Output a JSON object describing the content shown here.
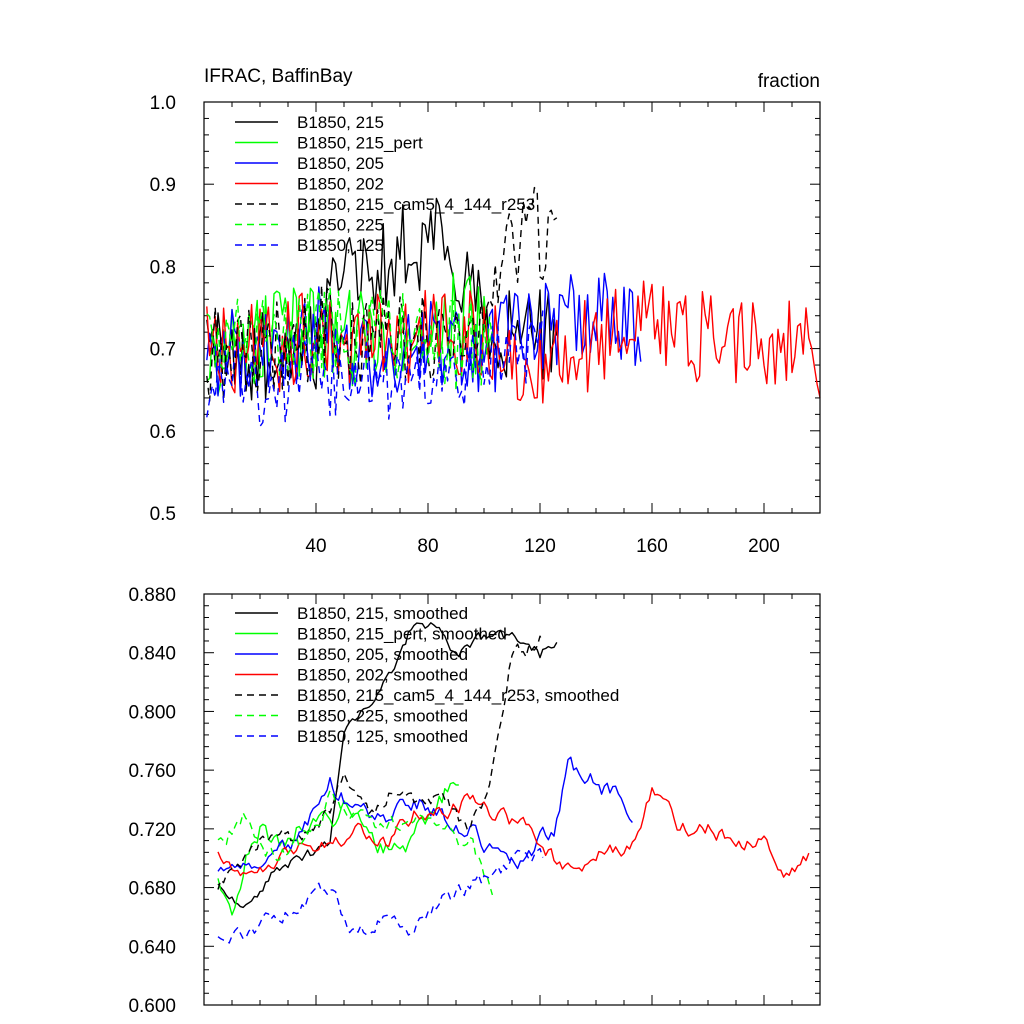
{
  "chart_data": [
    {
      "type": "line",
      "title": "IFRAC, BaffinBay",
      "units": "fraction",
      "xlim": [
        0,
        220
      ],
      "ylim": [
        0.5,
        1.0
      ],
      "xticks": [
        40,
        80,
        120,
        160,
        200
      ],
      "xticklabels": [
        "40",
        "80",
        "120",
        "160",
        "200"
      ],
      "yticks": [
        0.5,
        0.6,
        0.7,
        0.8,
        0.9,
        1.0
      ],
      "yticklabels": [
        "0.5",
        "0.6",
        "0.7",
        "0.8",
        "0.9",
        "1.0"
      ],
      "legend_placement": "top-left",
      "series": [
        {
          "name": "B1850, 215",
          "color": "#000000",
          "dash": "solid",
          "x_start": 1,
          "x_end": 126,
          "base": 0.71,
          "amp": 0.06,
          "anchors": [
            [
              1,
              0.7
            ],
            [
              20,
              0.69
            ],
            [
              40,
              0.71
            ],
            [
              50,
              0.78
            ],
            [
              60,
              0.8
            ],
            [
              70,
              0.82
            ],
            [
              80,
              0.83
            ],
            [
              85,
              0.85
            ],
            [
              92,
              0.8
            ],
            [
              100,
              0.74
            ],
            [
              110,
              0.72
            ],
            [
              126,
              0.71
            ]
          ]
        },
        {
          "name": "B1850, 215_pert",
          "color": "#00ff00",
          "dash": "solid",
          "x_start": 1,
          "x_end": 103,
          "base": 0.71,
          "amp": 0.06,
          "anchors": [
            [
              1,
              0.7
            ],
            [
              20,
              0.71
            ],
            [
              40,
              0.72
            ],
            [
              60,
              0.71
            ],
            [
              80,
              0.72
            ],
            [
              90,
              0.74
            ],
            [
              103,
              0.71
            ]
          ]
        },
        {
          "name": "B1850, 205",
          "color": "#0000ff",
          "dash": "solid",
          "x_start": 1,
          "x_end": 156,
          "base": 0.71,
          "amp": 0.06,
          "anchors": [
            [
              1,
              0.68
            ],
            [
              20,
              0.7
            ],
            [
              40,
              0.72
            ],
            [
              60,
              0.7
            ],
            [
              80,
              0.71
            ],
            [
              100,
              0.7
            ],
            [
              120,
              0.73
            ],
            [
              140,
              0.74
            ],
            [
              156,
              0.72
            ]
          ]
        },
        {
          "name": "B1850, 202",
          "color": "#ff0000",
          "dash": "solid",
          "x_start": 1,
          "x_end": 220,
          "base": 0.71,
          "amp": 0.06,
          "anchors": [
            [
              1,
              0.7
            ],
            [
              20,
              0.7
            ],
            [
              40,
              0.71
            ],
            [
              60,
              0.71
            ],
            [
              80,
              0.72
            ],
            [
              100,
              0.71
            ],
            [
              120,
              0.69
            ],
            [
              140,
              0.71
            ],
            [
              160,
              0.74
            ],
            [
              180,
              0.71
            ],
            [
              200,
              0.71
            ],
            [
              220,
              0.7
            ]
          ]
        },
        {
          "name": "B1850, 215_cam5_4_144_r253",
          "color": "#000000",
          "dash": "7,5",
          "x_start": 1,
          "x_end": 126,
          "base": 0.71,
          "amp": 0.06,
          "anchors": [
            [
              1,
              0.69
            ],
            [
              20,
              0.7
            ],
            [
              40,
              0.72
            ],
            [
              60,
              0.71
            ],
            [
              80,
              0.72
            ],
            [
              100,
              0.74
            ],
            [
              110,
              0.82
            ],
            [
              118,
              0.84
            ],
            [
              126,
              0.85
            ]
          ]
        },
        {
          "name": "B1850, 225",
          "color": "#00ff00",
          "dash": "7,5",
          "x_start": 1,
          "x_end": 103,
          "base": 0.71,
          "amp": 0.06,
          "anchors": [
            [
              1,
              0.72
            ],
            [
              20,
              0.71
            ],
            [
              40,
              0.72
            ],
            [
              60,
              0.71
            ],
            [
              80,
              0.72
            ],
            [
              103,
              0.69
            ]
          ]
        },
        {
          "name": "B1850, 125",
          "color": "#0000ff",
          "dash": "7,5",
          "x_start": 1,
          "x_end": 121,
          "base": 0.67,
          "amp": 0.05,
          "anchors": [
            [
              1,
              0.66
            ],
            [
              20,
              0.65
            ],
            [
              40,
              0.67
            ],
            [
              60,
              0.66
            ],
            [
              80,
              0.67
            ],
            [
              100,
              0.68
            ],
            [
              121,
              0.7
            ]
          ]
        }
      ]
    },
    {
      "type": "line",
      "title": "",
      "units": "",
      "xlim": [
        0,
        220
      ],
      "ylim": [
        0.6,
        0.88
      ],
      "xticks": [
        40,
        80,
        120,
        160,
        200
      ],
      "xticklabels": [],
      "yticks": [
        0.6,
        0.64,
        0.68,
        0.72,
        0.76,
        0.8,
        0.84,
        0.88
      ],
      "yticklabels": [
        "0.600",
        "0.640",
        "0.680",
        "0.720",
        "0.760",
        "0.800",
        "0.840",
        "0.880"
      ],
      "legend_placement": "top-left",
      "series": [
        {
          "name": "B1850, 215, smoothed",
          "color": "#000000",
          "dash": "solid",
          "x_start": 5,
          "x_end": 126,
          "amp": 0.008,
          "anchors": [
            [
              5,
              0.68
            ],
            [
              15,
              0.67
            ],
            [
              25,
              0.69
            ],
            [
              35,
              0.7
            ],
            [
              45,
              0.71
            ],
            [
              50,
              0.78
            ],
            [
              55,
              0.8
            ],
            [
              60,
              0.81
            ],
            [
              65,
              0.82
            ],
            [
              70,
              0.84
            ],
            [
              75,
              0.86
            ],
            [
              80,
              0.86
            ],
            [
              85,
              0.85
            ],
            [
              90,
              0.84
            ],
            [
              100,
              0.85
            ],
            [
              110,
              0.85
            ],
            [
              115,
              0.85
            ],
            [
              120,
              0.84
            ],
            [
              126,
              0.85
            ]
          ]
        },
        {
          "name": "B1850, 215_pert, smoothed",
          "color": "#00ff00",
          "dash": "solid",
          "x_start": 5,
          "x_end": 91,
          "amp": 0.015,
          "anchors": [
            [
              5,
              0.69
            ],
            [
              10,
              0.67
            ],
            [
              15,
              0.7
            ],
            [
              20,
              0.72
            ],
            [
              30,
              0.71
            ],
            [
              40,
              0.73
            ],
            [
              50,
              0.73
            ],
            [
              60,
              0.71
            ],
            [
              70,
              0.7
            ],
            [
              80,
              0.73
            ],
            [
              85,
              0.74
            ],
            [
              91,
              0.76
            ]
          ]
        },
        {
          "name": "B1850, 205, smoothed",
          "color": "#0000ff",
          "dash": "solid",
          "x_start": 5,
          "x_end": 153,
          "amp": 0.012,
          "anchors": [
            [
              5,
              0.69
            ],
            [
              15,
              0.7
            ],
            [
              25,
              0.7
            ],
            [
              35,
              0.72
            ],
            [
              40,
              0.73
            ],
            [
              45,
              0.75
            ],
            [
              55,
              0.73
            ],
            [
              65,
              0.73
            ],
            [
              75,
              0.74
            ],
            [
              85,
              0.73
            ],
            [
              95,
              0.72
            ],
            [
              105,
              0.7
            ],
            [
              115,
              0.7
            ],
            [
              120,
              0.71
            ],
            [
              125,
              0.72
            ],
            [
              130,
              0.76
            ],
            [
              135,
              0.76
            ],
            [
              140,
              0.75
            ],
            [
              150,
              0.74
            ],
            [
              153,
              0.73
            ]
          ]
        },
        {
          "name": "B1850, 202, smoothed",
          "color": "#ff0000",
          "dash": "solid",
          "x_start": 5,
          "x_end": 216,
          "amp": 0.01,
          "anchors": [
            [
              5,
              0.7
            ],
            [
              15,
              0.69
            ],
            [
              25,
              0.7
            ],
            [
              35,
              0.71
            ],
            [
              45,
              0.71
            ],
            [
              55,
              0.72
            ],
            [
              65,
              0.71
            ],
            [
              75,
              0.73
            ],
            [
              85,
              0.73
            ],
            [
              95,
              0.74
            ],
            [
              105,
              0.73
            ],
            [
              115,
              0.72
            ],
            [
              125,
              0.7
            ],
            [
              135,
              0.69
            ],
            [
              145,
              0.71
            ],
            [
              150,
              0.7
            ],
            [
              155,
              0.72
            ],
            [
              160,
              0.75
            ],
            [
              165,
              0.74
            ],
            [
              170,
              0.72
            ],
            [
              180,
              0.72
            ],
            [
              190,
              0.71
            ],
            [
              200,
              0.71
            ],
            [
              205,
              0.69
            ],
            [
              210,
              0.69
            ],
            [
              216,
              0.7
            ]
          ]
        },
        {
          "name": "B1850, 215_cam5_4_144_r253, smoothed",
          "color": "#000000",
          "dash": "7,5",
          "x_start": 5,
          "x_end": 121,
          "amp": 0.01,
          "anchors": [
            [
              5,
              0.68
            ],
            [
              15,
              0.7
            ],
            [
              25,
              0.72
            ],
            [
              35,
              0.71
            ],
            [
              45,
              0.73
            ],
            [
              50,
              0.76
            ],
            [
              55,
              0.74
            ],
            [
              60,
              0.73
            ],
            [
              70,
              0.75
            ],
            [
              75,
              0.74
            ],
            [
              85,
              0.74
            ],
            [
              90,
              0.73
            ],
            [
              95,
              0.72
            ],
            [
              100,
              0.74
            ],
            [
              105,
              0.78
            ],
            [
              110,
              0.84
            ],
            [
              115,
              0.84
            ],
            [
              121,
              0.85
            ]
          ]
        },
        {
          "name": "B1850, 225, smoothed",
          "color": "#00ff00",
          "dash": "7,5",
          "x_start": 5,
          "x_end": 103,
          "amp": 0.012,
          "anchors": [
            [
              5,
              0.71
            ],
            [
              15,
              0.73
            ],
            [
              25,
              0.7
            ],
            [
              35,
              0.71
            ],
            [
              45,
              0.74
            ],
            [
              55,
              0.73
            ],
            [
              65,
              0.72
            ],
            [
              75,
              0.73
            ],
            [
              85,
              0.72
            ],
            [
              95,
              0.71
            ],
            [
              100,
              0.69
            ],
            [
              103,
              0.68
            ]
          ]
        },
        {
          "name": "B1850, 125, smoothed",
          "color": "#0000ff",
          "dash": "7,5",
          "x_start": 5,
          "x_end": 121,
          "amp": 0.01,
          "anchors": [
            [
              5,
              0.65
            ],
            [
              15,
              0.65
            ],
            [
              25,
              0.66
            ],
            [
              35,
              0.67
            ],
            [
              45,
              0.68
            ],
            [
              50,
              0.66
            ],
            [
              55,
              0.65
            ],
            [
              65,
              0.66
            ],
            [
              75,
              0.65
            ],
            [
              85,
              0.67
            ],
            [
              95,
              0.68
            ],
            [
              105,
              0.69
            ],
            [
              110,
              0.7
            ],
            [
              115,
              0.7
            ],
            [
              121,
              0.7
            ]
          ]
        }
      ]
    }
  ]
}
